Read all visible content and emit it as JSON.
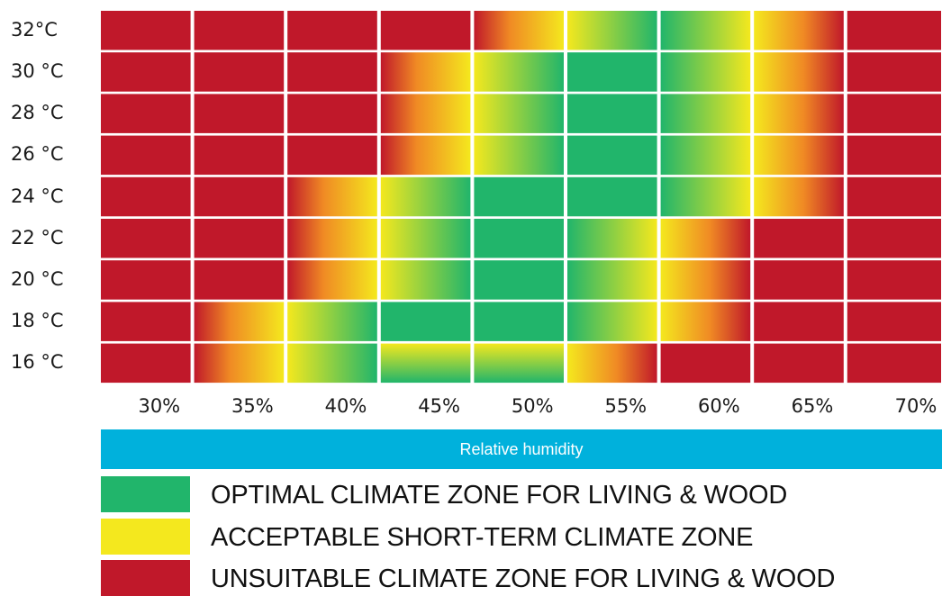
{
  "chart_data": {
    "type": "heatmap",
    "title": "",
    "xlabel": "Relative humidity",
    "ylabel": "",
    "x_ticks": [
      "30%",
      "35%",
      "40%",
      "45%",
      "50%",
      "55%",
      "60%",
      "65%",
      "70%"
    ],
    "y_ticks": [
      "32°C",
      "30 °C",
      "28 °C",
      "26 °C",
      "24 °C",
      "22 °C",
      "20 °C",
      "18 °C",
      "16 °C"
    ],
    "zone_scale": {
      "U": "unsuitable",
      "A": "acceptable short-term",
      "O": "optimal"
    },
    "cells": [
      [
        "U",
        "U",
        "U",
        "U",
        "U-A",
        "A-O",
        "O-A",
        "A-U",
        "U"
      ],
      [
        "U",
        "U",
        "U",
        "U-A",
        "A-O",
        "O",
        "O-A",
        "A-U",
        "U"
      ],
      [
        "U",
        "U",
        "U",
        "U-A",
        "A-O",
        "O",
        "O-A",
        "A-U",
        "U"
      ],
      [
        "U",
        "U",
        "U",
        "U-A",
        "A-O",
        "O",
        "O-A",
        "A-U",
        "U"
      ],
      [
        "U",
        "U",
        "U-A",
        "A-O",
        "O",
        "O",
        "O-A",
        "A-U",
        "U"
      ],
      [
        "U",
        "U",
        "U-A",
        "A-O",
        "O",
        "O-A",
        "A-U",
        "U",
        "U"
      ],
      [
        "U",
        "U",
        "U-A",
        "A-O",
        "O",
        "O-A",
        "A-U",
        "U",
        "U"
      ],
      [
        "U",
        "U-A",
        "A-O",
        "O",
        "O",
        "O-A",
        "A-U",
        "U",
        "U"
      ],
      [
        "U",
        "U-A",
        "A-O",
        "A|O",
        "A|O",
        "A-U",
        "U",
        "U",
        "U"
      ]
    ],
    "colors": {
      "unsuitable": "#c0182a",
      "acceptable": "#f4e81e",
      "optimal": "#21b56b",
      "orange": "#f08a24"
    },
    "legend": [
      {
        "label": "OPTIMAL CLIMATE ZONE FOR LIVING & WOOD",
        "color": "#21b56b"
      },
      {
        "label": "ACCEPTABLE SHORT-TERM CLIMATE ZONE",
        "color": "#f4e81e"
      },
      {
        "label": "UNSUITABLE CLIMATE ZONE FOR LIVING & WOOD",
        "color": "#c0182a"
      }
    ],
    "humidity_bar_color": "#00b1dc"
  }
}
